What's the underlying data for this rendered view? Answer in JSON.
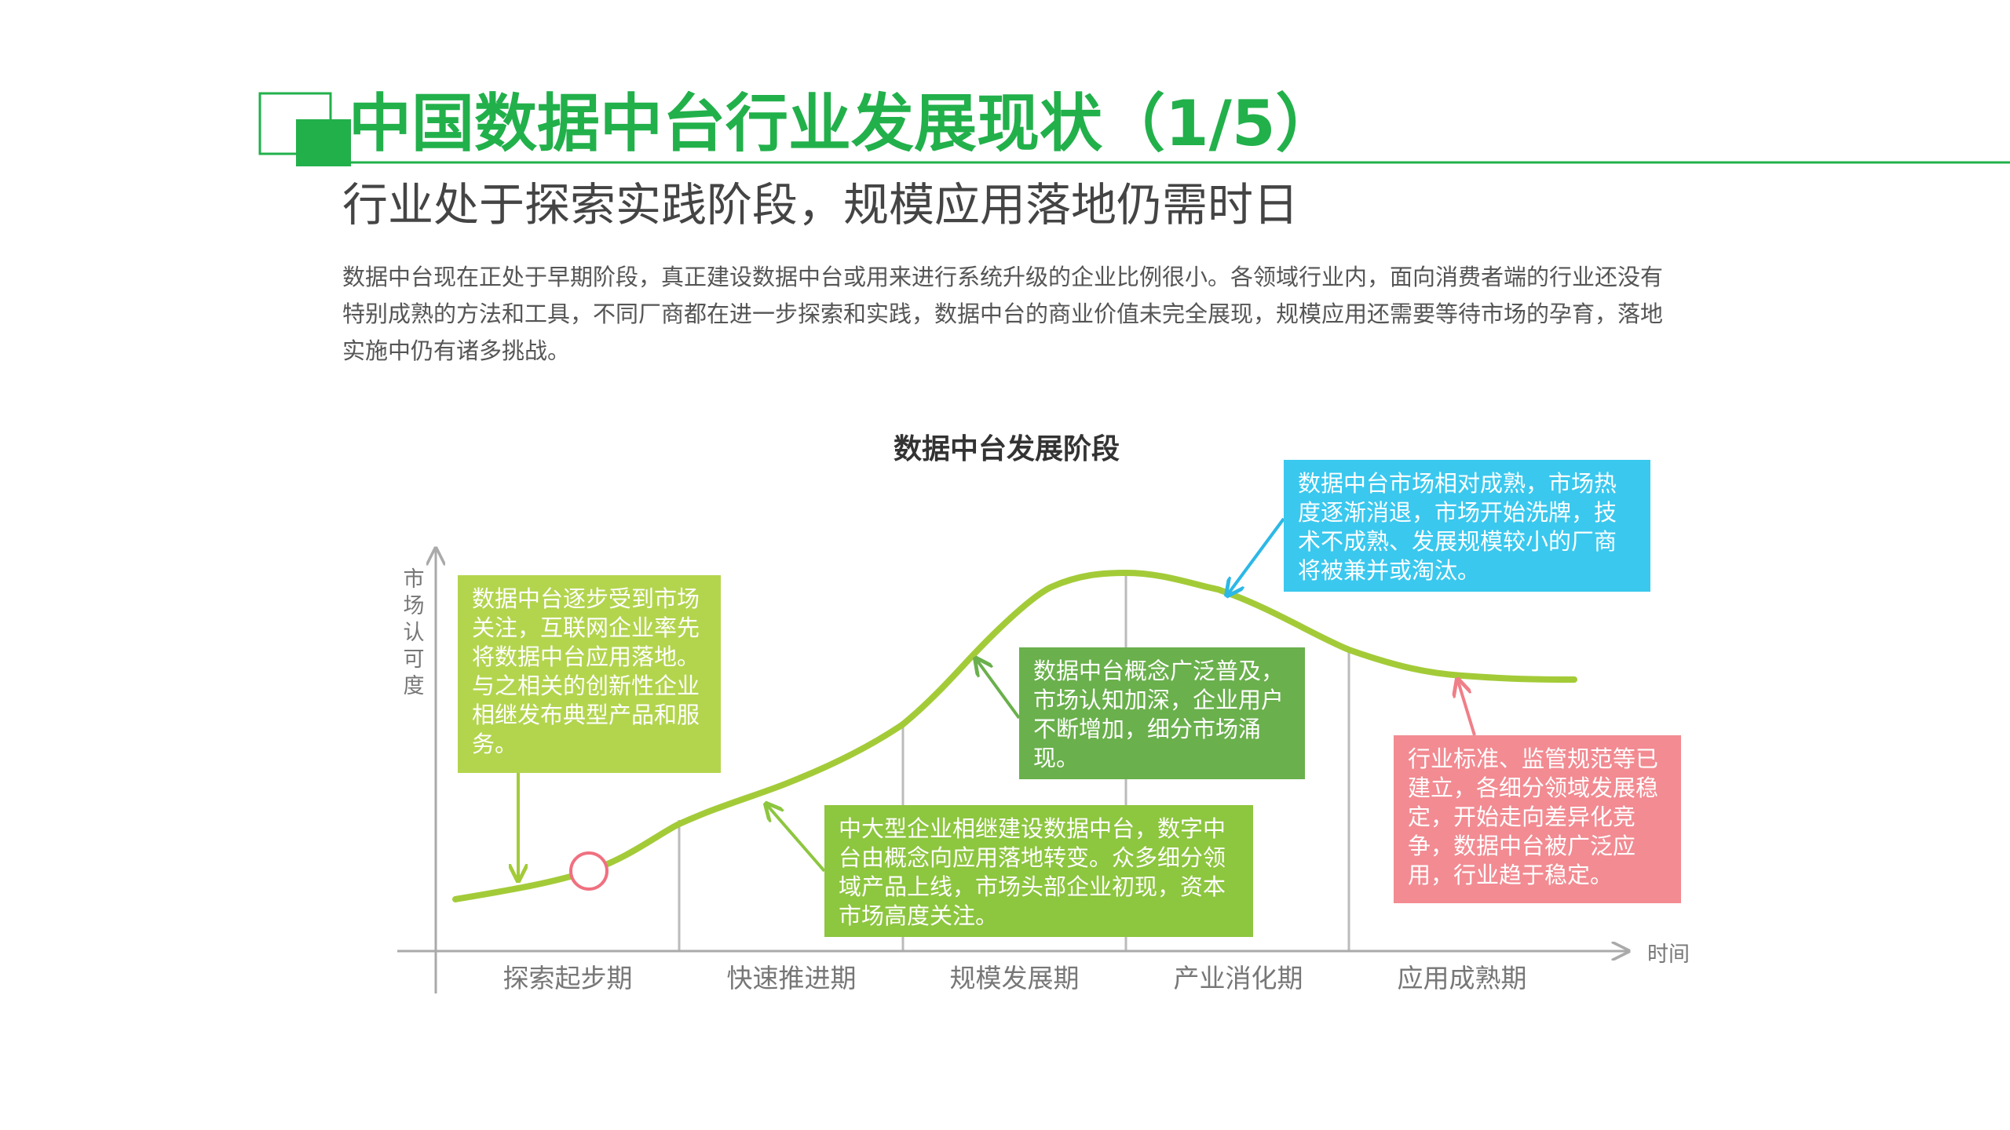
{
  "header": {
    "title": "中国数据中台行业发展现状（1/5）",
    "subtitle": "行业处于探索实践阶段，规模应用落地仍需时日",
    "description": "数据中台现在正处于早期阶段，真正建设数据中台或用来进行系统升级的企业比例很小。各领域行业内，面向消费者端的行业还没有特别成熟的方法和工具，不同厂商都在进一步探索和实践，数据中台的商业价值未完全展现，规模应用还需要等待市场的孕育，落地实施中仍有诸多挑战。"
  },
  "diagram": {
    "title": "数据中台发展阶段",
    "y_axis_label": "市场认可度",
    "x_axis_label": "时间",
    "stages": [
      "探索起步期",
      "快速推进期",
      "规模发展期",
      "产业消化期",
      "应用成熟期"
    ],
    "callouts": [
      {
        "text": "数据中台逐步受到市场关注，互联网企业率先将数据中台应用落地。与之相关的创新性企业相继发布典型产品和服务。"
      },
      {
        "text": "中大型企业相继建设数据中台，数字中台由概念向应用落地转变。众多细分领域产品上线，市场头部企业初现，资本市场高度关注。"
      },
      {
        "text": "数据中台概念广泛普及，市场认知加深，企业用户不断增加，细分市场涌现。"
      },
      {
        "text": "数据中台市场相对成熟，市场热度逐渐消退，市场开始洗牌，技术不成熟、发展规模较小的厂商将被兼并或淘汰。"
      },
      {
        "text": "行业标准、监管规范等已建立，各细分领域发展稳定，开始走向差异化竞争，数据中台被广泛应用，行业趋于稳定。"
      }
    ]
  }
}
